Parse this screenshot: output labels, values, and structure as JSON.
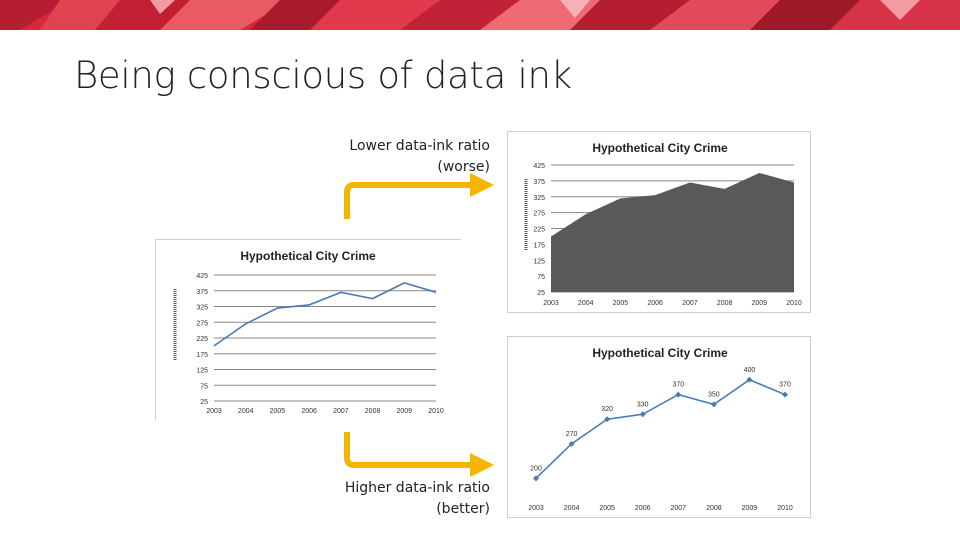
{
  "slide": {
    "title": "Being conscious of data ink",
    "lower_caption_line1": "Lower data-ink ratio",
    "lower_caption_line2": "(worse)",
    "higher_caption_line1": "Higher data-ink ratio",
    "higher_caption_line2": "(better)"
  },
  "colors": {
    "banner": "#d7263d",
    "arrow": "#f4b400",
    "line": "#4a7bb7",
    "area": "#595959",
    "grid": "#888888"
  },
  "chart_data": [
    {
      "id": "chart-a",
      "type": "line",
      "title": "Hypothetical City Crime",
      "categories": [
        "2003",
        "2004",
        "2005",
        "2006",
        "2007",
        "2008",
        "2009",
        "2010"
      ],
      "values": [
        200,
        270,
        320,
        330,
        370,
        350,
        400,
        370
      ],
      "ylim": [
        25,
        425
      ],
      "yticks": [
        "425",
        "375",
        "325",
        "275",
        "225",
        "175",
        "125",
        "75",
        "25"
      ],
      "ylabel": "",
      "grid": true,
      "data_labels": false
    },
    {
      "id": "chart-b",
      "type": "area",
      "title": "Hypothetical City Crime",
      "categories": [
        "2003",
        "2004",
        "2005",
        "2006",
        "2007",
        "2008",
        "2009",
        "2010"
      ],
      "values": [
        200,
        270,
        320,
        330,
        370,
        350,
        400,
        370
      ],
      "ylim": [
        25,
        425
      ],
      "yticks": [
        "425",
        "375",
        "325",
        "275",
        "225",
        "175",
        "125",
        "75",
        "25"
      ],
      "ylabel": "",
      "grid": true,
      "data_labels": false
    },
    {
      "id": "chart-c",
      "type": "line",
      "title": "Hypothetical City Crime",
      "categories": [
        "2003",
        "2004",
        "2005",
        "2006",
        "2007",
        "2008",
        "2009",
        "2010"
      ],
      "values": [
        200,
        270,
        320,
        330,
        370,
        350,
        400,
        370
      ],
      "point_labels": [
        "200",
        "270",
        "320",
        "330",
        "370",
        "350",
        "400",
        "370"
      ],
      "ylim": [
        150,
        430
      ],
      "grid": false,
      "markers": true,
      "data_labels": true
    }
  ]
}
